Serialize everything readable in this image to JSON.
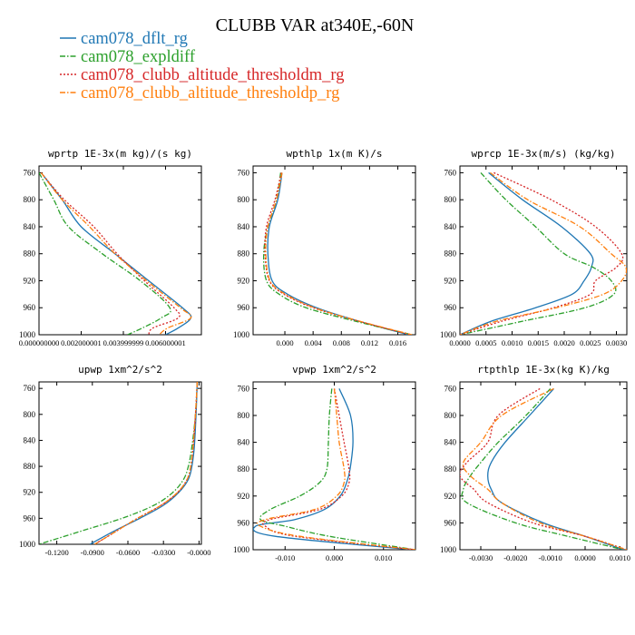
{
  "title": "CLUBB VAR at340E,-60N",
  "colors": {
    "blue": "#1f77b4",
    "green": "#2ca02c",
    "red": "#d62728",
    "orange": "#ff7f0e"
  },
  "legend": [
    {
      "label": "cam078_dflt_rg",
      "color": "#1f77b4",
      "dash": "solid"
    },
    {
      "label": "cam078_expldiff",
      "color": "#2ca02c",
      "dash": "dashdot"
    },
    {
      "label": "cam078_clubb_altitude_thresholdm_rg",
      "color": "#d62728",
      "dash": "dotted"
    },
    {
      "label": "cam078_clubb_altitude_thresholdp_rg",
      "color": "#ff7f0e",
      "dash": "dashdot"
    }
  ],
  "chart_data": [
    {
      "type": "line",
      "title": "wprtp  1E-3x(m kg)/(s kg)",
      "ylim": [
        1000,
        750
      ],
      "yticks": [
        "760",
        "800",
        "840",
        "880",
        "920",
        "960",
        "1000"
      ],
      "xlim": [
        0.0,
        0.0077
      ],
      "xticks": [
        0.0,
        0.002,
        0.004,
        0.006
      ],
      "xtick_labels": [
        "0.000000000",
        "0.002000001",
        "0.003999999",
        "0.006000001"
      ],
      "y": [
        760,
        800,
        840,
        880,
        920,
        960,
        975,
        990,
        1000
      ],
      "series": [
        {
          "values": [
            0.0001,
            0.0011,
            0.002,
            0.0036,
            0.0052,
            0.0068,
            0.0072,
            0.0066,
            0.006
          ]
        },
        {
          "values": [
            0.0,
            0.0007,
            0.0014,
            0.003,
            0.0048,
            0.0062,
            0.0058,
            0.0049,
            0.0042
          ]
        },
        {
          "values": [
            0.0001,
            0.0012,
            0.0026,
            0.0037,
            0.005,
            0.0064,
            0.0066,
            0.0054,
            0.0052
          ]
        },
        {
          "values": [
            0.0001,
            0.0011,
            0.0024,
            0.0036,
            0.0051,
            0.0067,
            0.0072,
            0.0061,
            0.0057
          ]
        }
      ]
    },
    {
      "type": "line",
      "title": "wpthlp  1x(m K)/s",
      "ylim": [
        1000,
        750
      ],
      "yticks": [
        "760",
        "800",
        "840",
        "880",
        "920",
        "960",
        "1000"
      ],
      "xlim": [
        -0.0045,
        0.0185
      ],
      "xticks": [
        0.0,
        0.004,
        0.008,
        0.012,
        0.016
      ],
      "xtick_labels": [
        "0.000",
        "0.004",
        "0.008",
        "0.012",
        "0.016"
      ],
      "y": [
        760,
        800,
        840,
        880,
        920,
        940,
        960,
        980,
        1000
      ],
      "series": [
        {
          "values": [
            -0.0004,
            -0.001,
            -0.0022,
            -0.0024,
            -0.0018,
            0.0004,
            0.0045,
            0.0105,
            0.0175
          ]
        },
        {
          "values": [
            -0.0006,
            -0.0012,
            -0.0024,
            -0.003,
            -0.0026,
            -0.0008,
            0.003,
            0.01,
            0.018
          ]
        },
        {
          "values": [
            -0.0005,
            -0.0014,
            -0.0026,
            -0.0028,
            -0.0022,
            -0.0001,
            0.004,
            0.0105,
            0.0178
          ]
        },
        {
          "values": [
            -0.0004,
            -0.0012,
            -0.0024,
            -0.0027,
            -0.0021,
            0.0001,
            0.0042,
            0.0106,
            0.018
          ]
        }
      ]
    },
    {
      "type": "line",
      "title": "wprcp  1E-3x(m/s) (kg/kg)",
      "ylim": [
        1000,
        750
      ],
      "yticks": [
        "760",
        "800",
        "840",
        "880",
        "920",
        "960",
        "1000"
      ],
      "xlim": [
        0.0,
        0.0032
      ],
      "xticks": [
        0.0,
        0.0005,
        0.001,
        0.0015,
        0.002,
        0.0025,
        0.003
      ],
      "xtick_labels": [
        "0.0000",
        "0.0005",
        "0.0010",
        "0.0015",
        "0.0020",
        "0.0025",
        "0.0030"
      ],
      "y": [
        760,
        800,
        840,
        880,
        900,
        920,
        940,
        960,
        980,
        1000
      ],
      "series": [
        {
          "values": [
            0.00055,
            0.0012,
            0.00195,
            0.0025,
            0.00252,
            0.00238,
            0.00215,
            0.00145,
            0.0006,
            0.0
          ]
        },
        {
          "values": [
            0.0004,
            0.00088,
            0.00145,
            0.002,
            0.00255,
            0.0029,
            0.00295,
            0.0024,
            0.0012,
            0.0
          ]
        },
        {
          "values": [
            0.00065,
            0.00175,
            0.0026,
            0.0031,
            0.003,
            0.0026,
            0.0025,
            0.0018,
            0.0008,
            0.0
          ]
        },
        {
          "values": [
            0.00058,
            0.0013,
            0.0023,
            0.0029,
            0.00318,
            0.0031,
            0.00275,
            0.00185,
            0.0007,
            0.0
          ]
        }
      ]
    },
    {
      "type": "line",
      "title": "upwp  1xm^2/s^2",
      "ylim": [
        1000,
        750
      ],
      "yticks": [
        "760",
        "800",
        "840",
        "880",
        "920",
        "960",
        "1000"
      ],
      "xlim": [
        -0.135,
        0.002
      ],
      "xticks": [
        -0.12,
        -0.09,
        -0.06,
        -0.03,
        0.0
      ],
      "xtick_labels": [
        "-0.1200",
        "-0.0900",
        "-0.0600",
        "-0.0300",
        "-0.0000"
      ],
      "y": [
        750,
        800,
        850,
        880,
        900,
        920,
        940,
        960,
        980,
        1000
      ],
      "series": [
        {
          "values": [
            -0.0015,
            -0.0025,
            -0.004,
            -0.006,
            -0.009,
            -0.017,
            -0.03,
            -0.05,
            -0.072,
            -0.092
          ]
        },
        {
          "values": [
            -0.0015,
            -0.003,
            -0.006,
            -0.009,
            -0.013,
            -0.022,
            -0.038,
            -0.065,
            -0.1,
            -0.135
          ]
        },
        {
          "values": [
            -0.0015,
            -0.003,
            -0.005,
            -0.007,
            -0.01,
            -0.018,
            -0.032,
            -0.052,
            -0.07,
            -0.088
          ]
        },
        {
          "values": [
            -0.0015,
            -0.003,
            -0.005,
            -0.007,
            -0.01,
            -0.018,
            -0.032,
            -0.052,
            -0.07,
            -0.088
          ]
        }
      ]
    },
    {
      "type": "line",
      "title": "vpwp  1xm^2/s^2",
      "ylim": [
        1000,
        750
      ],
      "yticks": [
        "760",
        "800",
        "840",
        "880",
        "920",
        "960",
        "1000"
      ],
      "xlim": [
        -0.0165,
        0.0165
      ],
      "xticks": [
        -0.01,
        0.0,
        0.01
      ],
      "xtick_labels": [
        "-0.010",
        "0.000",
        "0.010"
      ],
      "y": [
        760,
        800,
        840,
        880,
        900,
        920,
        940,
        955,
        965,
        980,
        1000
      ],
      "series": [
        {
          "values": [
            0.001,
            0.0033,
            0.0038,
            0.0032,
            0.0025,
            0.0012,
            -0.002,
            -0.008,
            -0.016,
            -0.012,
            0.016
          ]
        },
        {
          "values": [
            -0.0005,
            -0.001,
            -0.0012,
            -0.0015,
            -0.003,
            -0.007,
            -0.013,
            -0.015,
            -0.01,
            -0.001,
            0.0165
          ]
        },
        {
          "values": [
            0.0,
            0.001,
            0.002,
            0.003,
            0.003,
            0.0015,
            -0.003,
            -0.013,
            -0.014,
            -0.008,
            0.0165
          ]
        },
        {
          "values": [
            0.0,
            0.0005,
            0.001,
            0.002,
            0.002,
            0.0005,
            -0.004,
            -0.014,
            -0.015,
            -0.007,
            0.0165
          ]
        }
      ]
    },
    {
      "type": "line",
      "title": "rtpthlp  1E-3x(kg K)/kg",
      "ylim": [
        1000,
        750
      ],
      "yticks": [
        "760",
        "800",
        "840",
        "880",
        "920",
        "960",
        "1000"
      ],
      "xlim": [
        -0.0036,
        0.0012
      ],
      "xticks": [
        -0.003,
        -0.002,
        -0.001,
        0.0,
        0.001
      ],
      "xtick_labels": [
        "-0.0030",
        "-0.0020",
        "-0.0010",
        "0.0000",
        "0.0010"
      ],
      "y": [
        760,
        800,
        840,
        870,
        890,
        910,
        930,
        960,
        980,
        1000
      ],
      "series": [
        {
          "values": [
            -0.0009,
            -0.0016,
            -0.0023,
            -0.0027,
            -0.0028,
            -0.0027,
            -0.0024,
            -0.0012,
            0.0,
            0.0011
          ]
        },
        {
          "values": [
            -0.001,
            -0.0017,
            -0.0025,
            -0.003,
            -0.0033,
            -0.0035,
            -0.0034,
            -0.002,
            -0.0005,
            0.0011
          ]
        },
        {
          "values": [
            -0.0013,
            -0.0025,
            -0.0028,
            -0.0034,
            -0.0036,
            -0.0032,
            -0.0028,
            -0.0015,
            0.0,
            0.0012
          ]
        },
        {
          "values": [
            -0.0009,
            -0.0024,
            -0.003,
            -0.0035,
            -0.0033,
            -0.0028,
            -0.0024,
            -0.0013,
            0.0,
            0.0012
          ]
        }
      ]
    }
  ]
}
